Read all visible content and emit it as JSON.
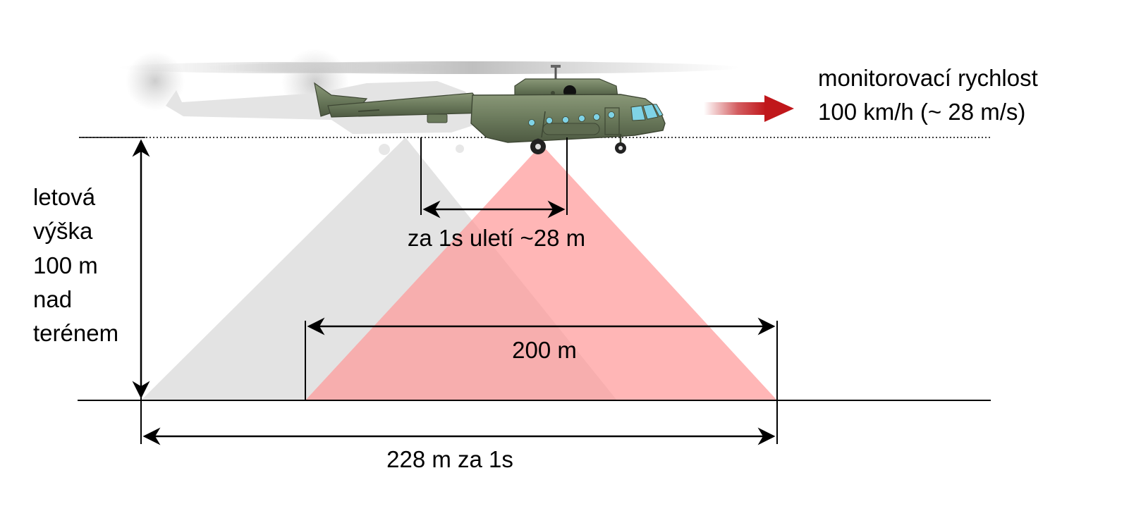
{
  "speed": {
    "line1": "monitorovací rychlost",
    "line2": "100 km/h (~ 28 m/s)"
  },
  "altitude": {
    "lines": [
      "letová",
      "výška",
      "100 m",
      "nad",
      "terénem"
    ]
  },
  "distance_per_second": "za 1s uletí ~28 m",
  "swath_width": "200 m",
  "coverage": "228 m za 1s",
  "colors": {
    "current_footprint": "#ff9a9a",
    "previous_footprint": "#d9d9d9",
    "helicopter_body": "#6b7a5c",
    "arrow": "#c0171b"
  }
}
